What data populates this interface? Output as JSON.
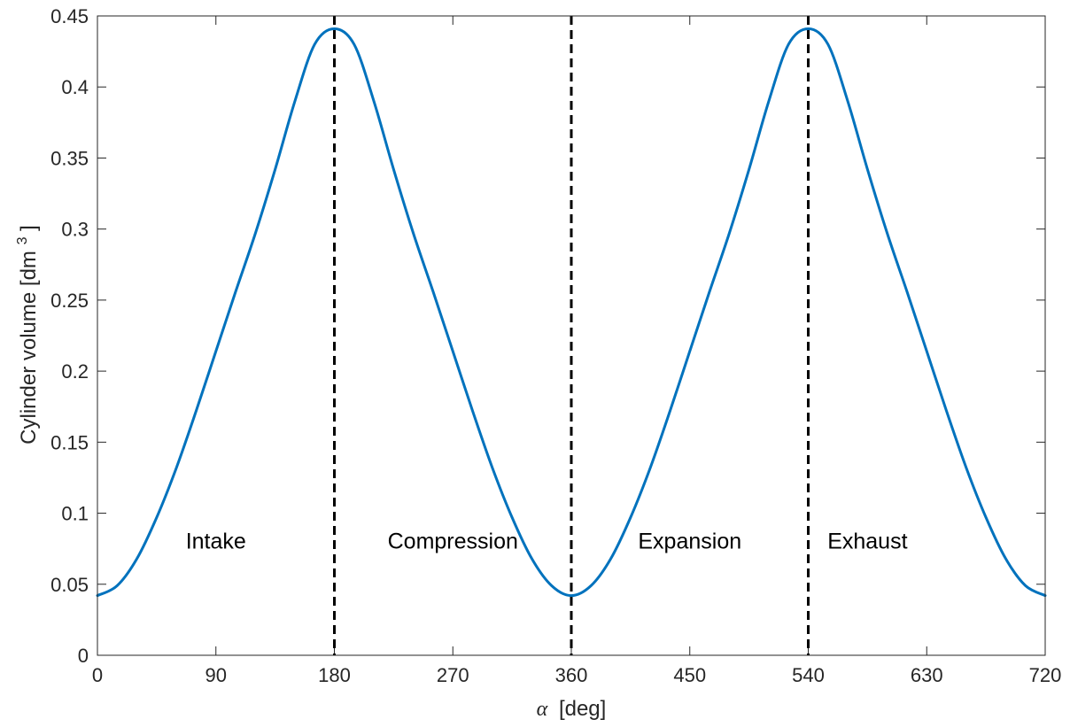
{
  "chart_data": {
    "type": "line",
    "title": "",
    "xlabel_symbol": "α",
    "xlabel_unit": "[deg]",
    "ylabel_main": "Cylinder volume [dm",
    "ylabel_sup": "3",
    "ylabel_close": "]",
    "xlim": [
      0,
      720
    ],
    "ylim": [
      0,
      0.45
    ],
    "xticks": [
      0,
      90,
      180,
      270,
      360,
      450,
      540,
      630,
      720
    ],
    "yticks": [
      0,
      0.05,
      0.1,
      0.15,
      0.2,
      0.25,
      0.3,
      0.35,
      0.4,
      0.45
    ],
    "xtick_labels": [
      "0",
      "90",
      "180",
      "270",
      "360",
      "450",
      "540",
      "630",
      "720"
    ],
    "ytick_labels": [
      "0",
      "0.05",
      "0.1",
      "0.15",
      "0.2",
      "0.25",
      "0.3",
      "0.35",
      "0.4",
      "0.45"
    ],
    "grid": false,
    "series": [
      {
        "color": "#0072BD",
        "x": [
          0,
          15,
          30,
          45,
          60,
          75,
          90,
          105,
          120,
          135,
          150,
          165,
          180,
          195,
          210,
          225,
          240,
          255,
          270,
          285,
          300,
          315,
          330,
          345,
          360,
          375,
          390,
          405,
          420,
          435,
          450,
          465,
          480,
          495,
          510,
          525,
          540,
          555,
          570,
          585,
          600,
          615,
          630,
          645,
          660,
          675,
          690,
          705,
          720
        ],
        "y": [
          0.042,
          0.049,
          0.068,
          0.097,
          0.132,
          0.172,
          0.214,
          0.256,
          0.297,
          0.342,
          0.39,
          0.43,
          0.441,
          0.43,
          0.39,
          0.342,
          0.297,
          0.256,
          0.214,
          0.172,
          0.132,
          0.097,
          0.068,
          0.049,
          0.042,
          0.049,
          0.068,
          0.097,
          0.132,
          0.172,
          0.214,
          0.256,
          0.297,
          0.342,
          0.39,
          0.43,
          0.441,
          0.43,
          0.39,
          0.342,
          0.297,
          0.256,
          0.214,
          0.172,
          0.132,
          0.097,
          0.068,
          0.049,
          0.042
        ]
      }
    ],
    "vlines": [
      180,
      360,
      540
    ],
    "vline_color": "#000000",
    "vline_style": "dashed",
    "annotations": [
      {
        "text": "Intake",
        "x": 90,
        "y": 0.075
      },
      {
        "text": "Compression",
        "x": 270,
        "y": 0.075
      },
      {
        "text": "Expansion",
        "x": 450,
        "y": 0.075
      },
      {
        "text": "Exhaust",
        "x": 585,
        "y": 0.075
      }
    ]
  }
}
